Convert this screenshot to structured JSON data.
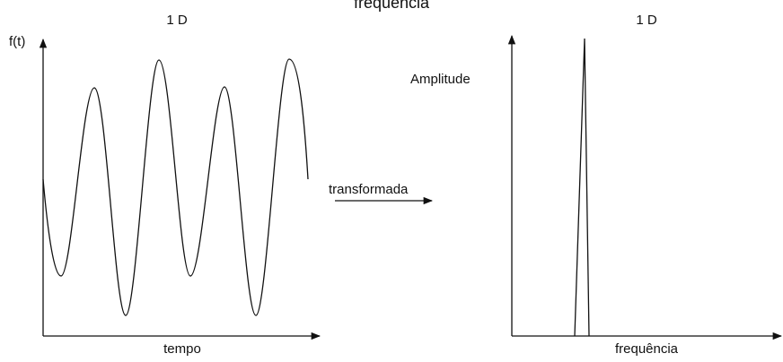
{
  "title": "frequência",
  "left_panel": {
    "label": "1 D",
    "y_label": "f(t)",
    "x_label": "tempo"
  },
  "transform_label": "transformada",
  "right_panel": {
    "label": "1 D",
    "y_label": "Amplitude",
    "x_label": "frequência"
  }
}
